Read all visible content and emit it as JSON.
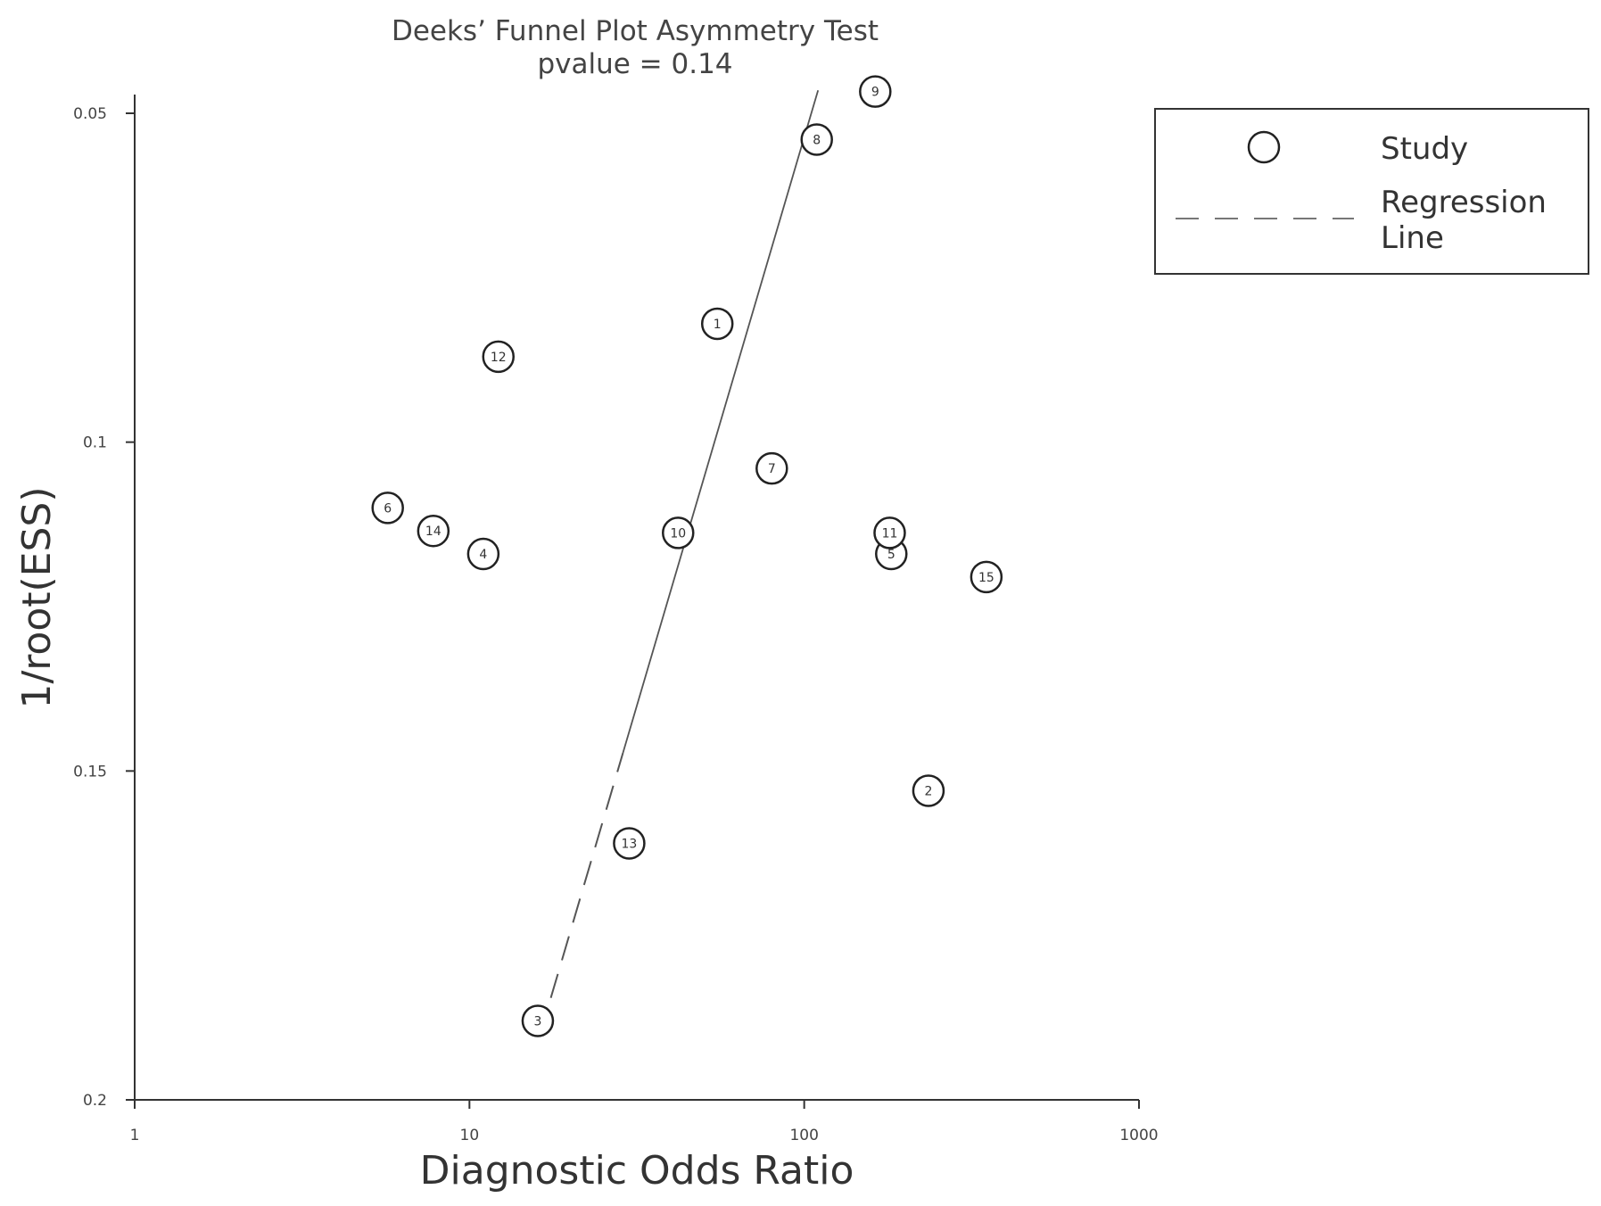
{
  "chart_data": {
    "type": "scatter",
    "title": "Deeks’ Funnel Plot Asymmetry Test",
    "subtitle": "pvalue =  0.14",
    "xlabel": "Diagnostic Odds Ratio",
    "ylabel": "1/root(ESS)",
    "x_scale": "log",
    "xlim": [
      1,
      1000
    ],
    "ylim": [
      0.2,
      0.047
    ],
    "y_inverted": true,
    "x_ticks": [
      {
        "value": 1,
        "label": "1"
      },
      {
        "value": 10,
        "label": "10"
      },
      {
        "value": 100,
        "label": "100"
      },
      {
        "value": 1000,
        "label": "1000"
      }
    ],
    "y_ticks": [
      {
        "value": 0.05,
        "label": "0.05"
      },
      {
        "value": 0.1,
        "label": "0.1"
      },
      {
        "value": 0.15,
        "label": "0.15"
      },
      {
        "value": 0.2,
        "label": "0.2"
      }
    ],
    "points": [
      {
        "label": "1",
        "x": 55,
        "y": 0.082
      },
      {
        "label": "2",
        "x": 235,
        "y": 0.153
      },
      {
        "label": "3",
        "x": 16,
        "y": 0.188
      },
      {
        "label": "4",
        "x": 11,
        "y": 0.117
      },
      {
        "label": "5",
        "x": 182,
        "y": 0.117
      },
      {
        "label": "6",
        "x": 5.7,
        "y": 0.11
      },
      {
        "label": "7",
        "x": 80,
        "y": 0.104
      },
      {
        "label": "8",
        "x": 109,
        "y": 0.054
      },
      {
        "label": "9",
        "x": 163,
        "y": 0.0467
      },
      {
        "label": "10",
        "x": 42,
        "y": 0.1138
      },
      {
        "label": "11",
        "x": 180,
        "y": 0.1138
      },
      {
        "label": "12",
        "x": 12.2,
        "y": 0.087
      },
      {
        "label": "13",
        "x": 30,
        "y": 0.161
      },
      {
        "label": "14",
        "x": 7.8,
        "y": 0.1135
      },
      {
        "label": "15",
        "x": 350,
        "y": 0.1205
      }
    ],
    "regression_line": {
      "x": [
        17.5,
        110
      ],
      "y": [
        0.1845,
        0.0465
      ]
    },
    "legend": {
      "position": "top-right",
      "entries": [
        {
          "label": "Study",
          "symbol": "circle"
        },
        {
          "label_lines": [
            "Regression",
            "Line"
          ],
          "symbol": "dashed-line"
        }
      ]
    },
    "grid": false,
    "colors": {
      "axis": "#333333",
      "marker": "#222222",
      "line": "#555555"
    }
  }
}
